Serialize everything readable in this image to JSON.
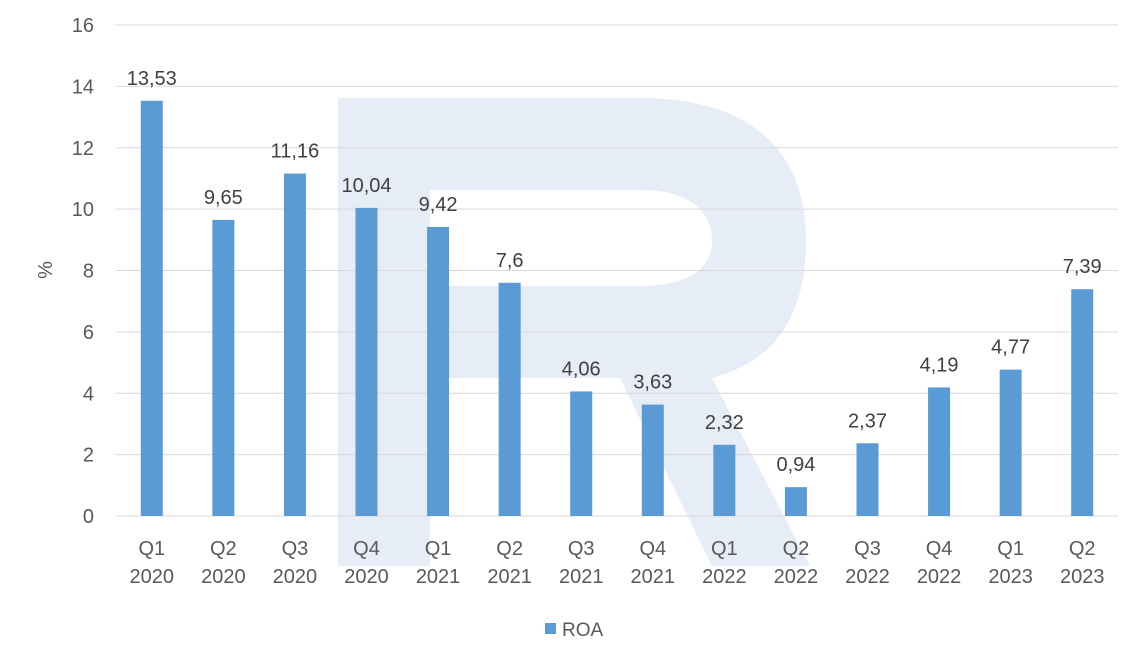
{
  "chart_data": {
    "type": "bar",
    "categories": [
      [
        "Q1",
        "2020"
      ],
      [
        "Q2",
        "2020"
      ],
      [
        "Q3",
        "2020"
      ],
      [
        "Q4",
        "2020"
      ],
      [
        "Q1",
        "2021"
      ],
      [
        "Q2",
        "2021"
      ],
      [
        "Q3",
        "2021"
      ],
      [
        "Q4",
        "2021"
      ],
      [
        "Q1",
        "2022"
      ],
      [
        "Q2",
        "2022"
      ],
      [
        "Q3",
        "2022"
      ],
      [
        "Q4",
        "2022"
      ],
      [
        "Q1",
        "2023"
      ],
      [
        "Q2",
        "2023"
      ]
    ],
    "series": [
      {
        "name": "ROA",
        "values": [
          13.53,
          9.65,
          11.16,
          10.04,
          9.42,
          7.6,
          4.06,
          3.63,
          2.32,
          0.94,
          2.37,
          4.19,
          4.77,
          7.39
        ],
        "labels": [
          "13,53",
          "9,65",
          "11,16",
          "10,04",
          "9,42",
          "7,6",
          "4,06",
          "3,63",
          "2,32",
          "0,94",
          "2,37",
          "4,19",
          "4,77",
          "7,39"
        ],
        "color": "#5b9bd5"
      }
    ],
    "title": "",
    "xlabel": "",
    "ylabel": "%",
    "ylim": [
      0,
      16
    ],
    "yticks": [
      "0",
      "2",
      "4",
      "6",
      "8",
      "10",
      "12",
      "14",
      "16"
    ],
    "grid": true,
    "legend_position": "bottom"
  },
  "colors": {
    "bar": "#5b9bd5",
    "grid": "#d9d9d9",
    "watermark": "#e6edf6"
  },
  "watermark_icon": "r-logo-watermark"
}
